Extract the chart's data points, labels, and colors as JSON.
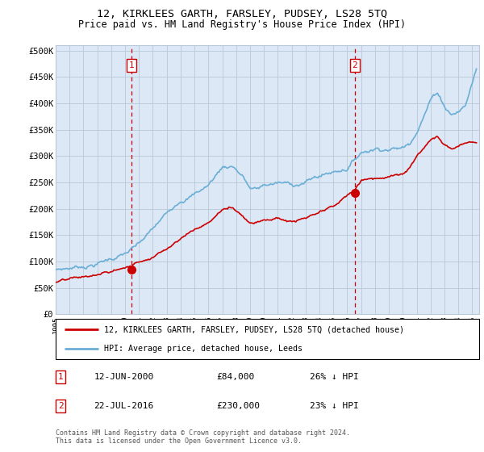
{
  "title": "12, KIRKLEES GARTH, FARSLEY, PUDSEY, LS28 5TQ",
  "subtitle": "Price paid vs. HM Land Registry's House Price Index (HPI)",
  "ylabel_ticks": [
    "£0",
    "£50K",
    "£100K",
    "£150K",
    "£200K",
    "£250K",
    "£300K",
    "£350K",
    "£400K",
    "£450K",
    "£500K"
  ],
  "ytick_vals": [
    0,
    50000,
    100000,
    150000,
    200000,
    250000,
    300000,
    350000,
    400000,
    450000,
    500000
  ],
  "ylim": [
    0,
    510000
  ],
  "xlim_start": 1995.0,
  "xlim_end": 2025.5,
  "legend_line1": "12, KIRKLEES GARTH, FARSLEY, PUDSEY, LS28 5TQ (detached house)",
  "legend_line2": "HPI: Average price, detached house, Leeds",
  "marker1_year": 2000.45,
  "marker1_val": 84000,
  "marker2_year": 2016.55,
  "marker2_val": 230000,
  "footer": "Contains HM Land Registry data © Crown copyright and database right 2024.\nThis data is licensed under the Open Government Licence v3.0.",
  "table_rows": [
    {
      "num": "1",
      "date": "12-JUN-2000",
      "price": "£84,000",
      "pct": "26% ↓ HPI"
    },
    {
      "num": "2",
      "date": "22-JUL-2016",
      "price": "£230,000",
      "pct": "23% ↓ HPI"
    }
  ],
  "hpi_color": "#6baed6",
  "price_color": "#cc0000",
  "bg_color": "#dce8f5",
  "grid_color": "#b8c8d8"
}
